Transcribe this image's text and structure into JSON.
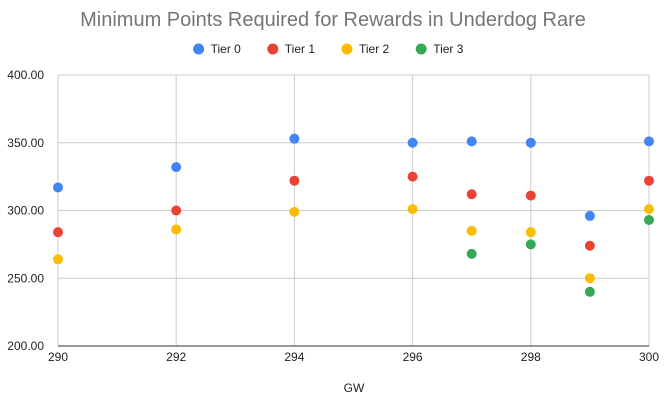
{
  "chart_data": {
    "type": "scatter",
    "title": "Minimum Points Required for Rewards in Underdog Rare",
    "xlabel": "GW",
    "ylabel": "",
    "xlim": [
      290,
      300
    ],
    "ylim": [
      200,
      400
    ],
    "x_ticks": [
      "290",
      "292",
      "294",
      "296",
      "298",
      "300"
    ],
    "y_ticks": [
      "200.00",
      "250.00",
      "300.00",
      "350.00",
      "400.00"
    ],
    "grid": true,
    "legend_position": "top",
    "series": [
      {
        "name": "Tier 0",
        "color": "#4285f4",
        "points": [
          [
            290,
            317
          ],
          [
            292,
            332
          ],
          [
            294,
            353
          ],
          [
            296,
            350
          ],
          [
            297,
            351
          ],
          [
            298,
            350
          ],
          [
            299,
            296
          ],
          [
            300,
            351
          ]
        ]
      },
      {
        "name": "Tier 1",
        "color": "#ea4335",
        "points": [
          [
            290,
            284
          ],
          [
            292,
            300
          ],
          [
            294,
            322
          ],
          [
            296,
            325
          ],
          [
            297,
            312
          ],
          [
            298,
            311
          ],
          [
            299,
            274
          ],
          [
            300,
            322
          ]
        ]
      },
      {
        "name": "Tier 2",
        "color": "#fbbc04",
        "points": [
          [
            290,
            264
          ],
          [
            292,
            286
          ],
          [
            294,
            299
          ],
          [
            296,
            301
          ],
          [
            297,
            285
          ],
          [
            298,
            284
          ],
          [
            299,
            250
          ],
          [
            300,
            301
          ]
        ]
      },
      {
        "name": "Tier 3",
        "color": "#34a853",
        "points": [
          [
            297,
            268
          ],
          [
            298,
            275
          ],
          [
            299,
            240
          ],
          [
            300,
            293
          ]
        ]
      }
    ]
  }
}
